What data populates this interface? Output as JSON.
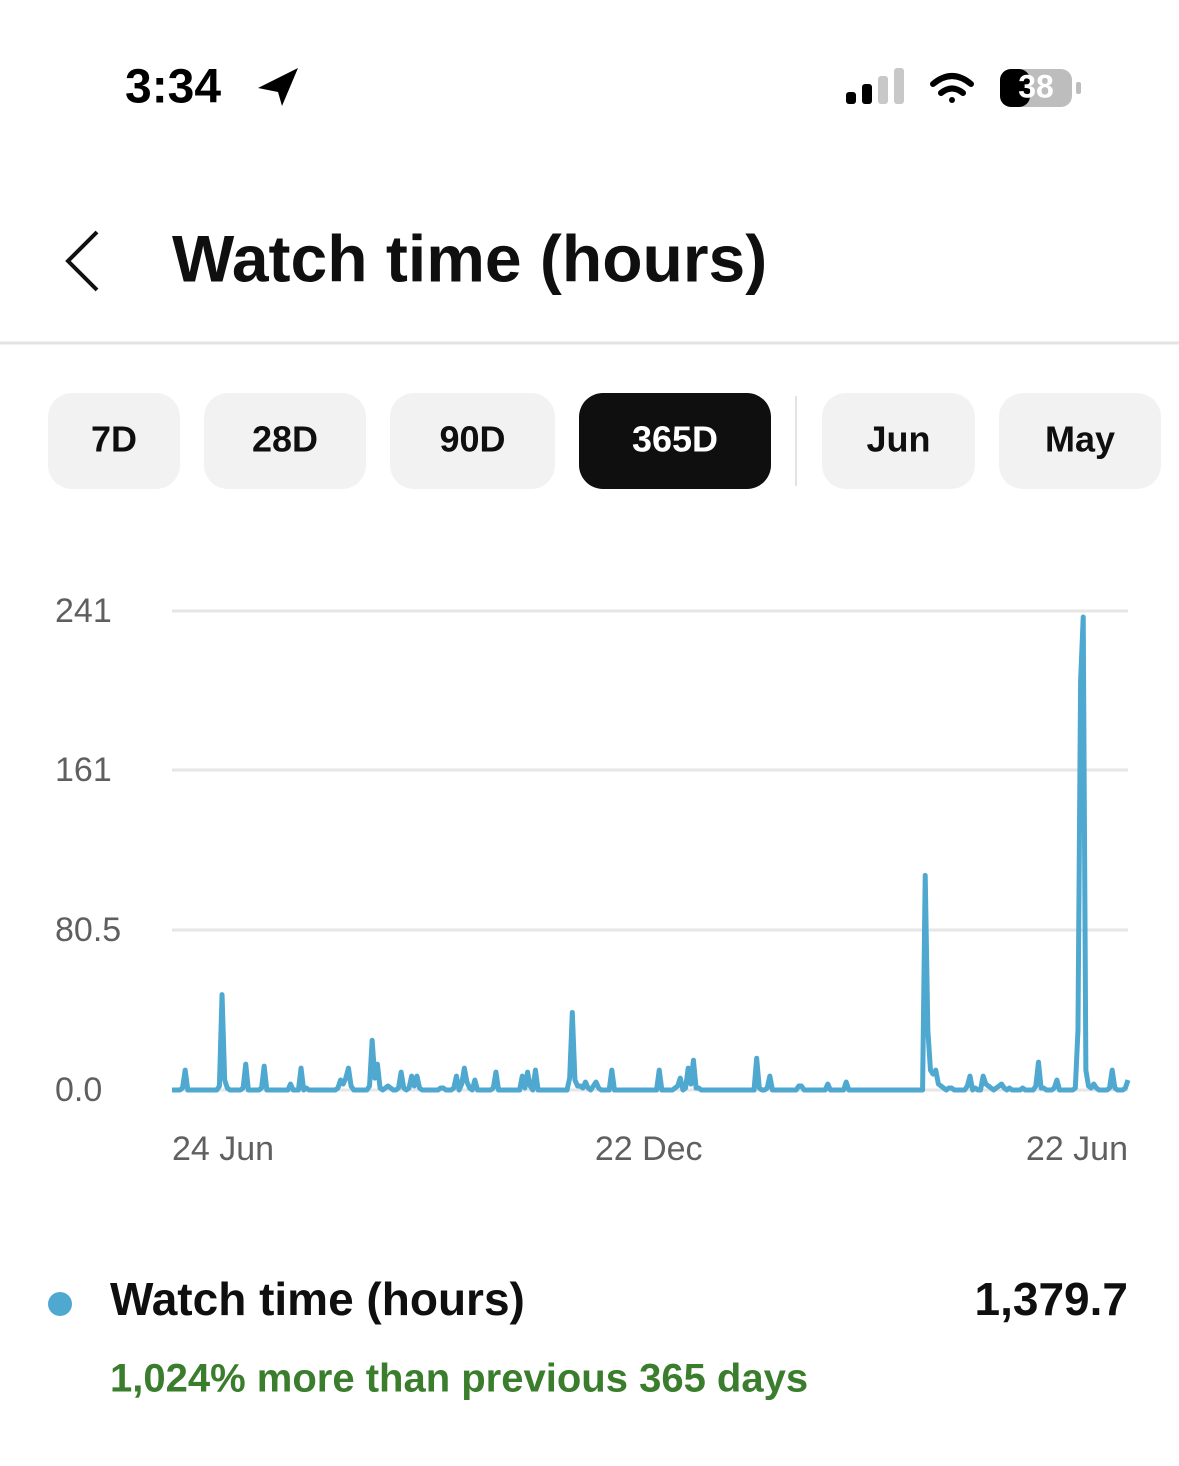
{
  "status_bar": {
    "time": "3:34",
    "battery": "38"
  },
  "header": {
    "title": "Watch time (hours)"
  },
  "tabs": [
    {
      "label": "7D",
      "selected": false
    },
    {
      "label": "28D",
      "selected": false
    },
    {
      "label": "90D",
      "selected": false
    },
    {
      "label": "365D",
      "selected": true
    },
    {
      "label": "Jun",
      "selected": false
    },
    {
      "label": "May",
      "selected": false
    }
  ],
  "chart_data": {
    "type": "line",
    "categories": [
      "24 Jun",
      null,
      null,
      null,
      null,
      null,
      null,
      null,
      null,
      null,
      null,
      null,
      null,
      null,
      null,
      null,
      null,
      null,
      null,
      null,
      null,
      null,
      null,
      null,
      null,
      null,
      null,
      null,
      null,
      null,
      null,
      null,
      null,
      null,
      null,
      null,
      null,
      null,
      null,
      null,
      null,
      null,
      null,
      null,
      null,
      null,
      null,
      null,
      null,
      null,
      null,
      null,
      null,
      null,
      null,
      null,
      null,
      null,
      null,
      null,
      null,
      null,
      null,
      null,
      null,
      null,
      null,
      null,
      null,
      null,
      null,
      null,
      null,
      null,
      null,
      null,
      null,
      null,
      null,
      null,
      null,
      null,
      null,
      null,
      null,
      null,
      null,
      null,
      null,
      null,
      null,
      null,
      null,
      null,
      null,
      null,
      null,
      null,
      null,
      null,
      null,
      null,
      null,
      null,
      null,
      null,
      null,
      null,
      null,
      null,
      null,
      null,
      null,
      null,
      null,
      null,
      null,
      null,
      null,
      null,
      null,
      null,
      null,
      null,
      null,
      null,
      null,
      null,
      null,
      null,
      null,
      null,
      null,
      null,
      null,
      null,
      null,
      null,
      null,
      null,
      null,
      null,
      null,
      null,
      null,
      null,
      null,
      null,
      null,
      null,
      null,
      null,
      null,
      null,
      null,
      null,
      null,
      null,
      null,
      null,
      null,
      null,
      null,
      null,
      null,
      null,
      null,
      null,
      null,
      null,
      null,
      null,
      null,
      null,
      null,
      null,
      null,
      null,
      null,
      null,
      null,
      "22 Dec",
      null,
      null,
      null,
      null,
      null,
      null,
      null,
      null,
      null,
      null,
      null,
      null,
      null,
      null,
      null,
      null,
      null,
      null,
      null,
      null,
      null,
      null,
      null,
      null,
      null,
      null,
      null,
      null,
      null,
      null,
      null,
      null,
      null,
      null,
      null,
      null,
      null,
      null,
      null,
      null,
      null,
      null,
      null,
      null,
      null,
      null,
      null,
      null,
      null,
      null,
      null,
      null,
      null,
      null,
      null,
      null,
      null,
      null,
      null,
      null,
      null,
      null,
      null,
      null,
      null,
      null,
      null,
      null,
      null,
      null,
      null,
      null,
      null,
      null,
      null,
      null,
      null,
      null,
      null,
      null,
      null,
      null,
      null,
      null,
      null,
      null,
      null,
      null,
      null,
      null,
      null,
      null,
      null,
      null,
      null,
      null,
      null,
      null,
      null,
      null,
      null,
      null,
      null,
      null,
      null,
      null,
      null,
      null,
      null,
      null,
      null,
      null,
      null,
      null,
      null,
      null,
      null,
      null,
      null,
      null,
      null,
      null,
      null,
      null,
      null,
      null,
      null,
      null,
      null,
      null,
      null,
      null,
      null,
      null,
      null,
      null,
      null,
      null,
      null,
      null,
      null,
      null,
      null,
      null,
      null,
      null,
      null,
      null,
      null,
      null,
      null,
      null,
      null,
      null,
      null,
      null,
      null,
      null,
      null,
      null,
      null,
      null,
      null,
      null,
      null,
      null,
      null,
      null,
      null,
      null,
      null,
      null,
      null,
      null,
      null,
      null,
      null,
      null,
      null,
      null,
      null,
      "22 Jun"
    ],
    "series": [
      {
        "name": "Watch time (hours)",
        "color": "#4fa8d0",
        "values": [
          0,
          0,
          0,
          0,
          1,
          10,
          0,
          0,
          0,
          0,
          0,
          0,
          0,
          0,
          0,
          0,
          0,
          0,
          2,
          48,
          5,
          1,
          0,
          0,
          0,
          0,
          0,
          1,
          13,
          0,
          0,
          0,
          0,
          0,
          1,
          12,
          0,
          0,
          0,
          0,
          0,
          0,
          0,
          0,
          0,
          3,
          0,
          0,
          0,
          11,
          0,
          1,
          0,
          0,
          0,
          0,
          0,
          0,
          0,
          0,
          0,
          0,
          0,
          1,
          5,
          3,
          6,
          11,
          2,
          0,
          0,
          0,
          0,
          0,
          0,
          2,
          25,
          6,
          13,
          1,
          0,
          1,
          2,
          1,
          0,
          0,
          1,
          9,
          1,
          0,
          1,
          7,
          2,
          7,
          1,
          0,
          0,
          0,
          0,
          0,
          0,
          0,
          1,
          1,
          0,
          0,
          0,
          1,
          7,
          0,
          3,
          11,
          4,
          1,
          0,
          5,
          0,
          0,
          0,
          0,
          0,
          0,
          1,
          9,
          0,
          0,
          0,
          0,
          0,
          0,
          0,
          0,
          0,
          7,
          1,
          9,
          2,
          0,
          10,
          0,
          0,
          0,
          0,
          0,
          0,
          0,
          0,
          0,
          0,
          0,
          0,
          6,
          39,
          5,
          2,
          2,
          1,
          4,
          1,
          0,
          2,
          4,
          1,
          0,
          0,
          0,
          0,
          10,
          0,
          0,
          0,
          0,
          0,
          0,
          0,
          0,
          0,
          0,
          0,
          0,
          0,
          0,
          0,
          0,
          0,
          10,
          0,
          0,
          0,
          0,
          0,
          1,
          2,
          6,
          0,
          1,
          11,
          3,
          15,
          1,
          1,
          0,
          0,
          0,
          0,
          0,
          0,
          0,
          0,
          0,
          0,
          0,
          0,
          0,
          0,
          0,
          0,
          0,
          0,
          0,
          0,
          0,
          16,
          1,
          0,
          0,
          1,
          7,
          0,
          0,
          0,
          0,
          0,
          0,
          0,
          0,
          0,
          0,
          2,
          2,
          0,
          0,
          0,
          0,
          0,
          0,
          0,
          0,
          0,
          3,
          0,
          0,
          0,
          0,
          0,
          0,
          4,
          0,
          0,
          0,
          0,
          0,
          0,
          0,
          0,
          0,
          0,
          0,
          0,
          0,
          0,
          0,
          0,
          0,
          0,
          0,
          0,
          0,
          0,
          0,
          0,
          0,
          0,
          0,
          0,
          0,
          108,
          30,
          10,
          8,
          10,
          3,
          2,
          1,
          0,
          1,
          1,
          0,
          0,
          0,
          0,
          0,
          2,
          7,
          0,
          1,
          0,
          0,
          7,
          3,
          2,
          1,
          0,
          1,
          2,
          3,
          1,
          0,
          1,
          0,
          0,
          0,
          0,
          1,
          0,
          0,
          0,
          0,
          2,
          14,
          1,
          1,
          0,
          0,
          0,
          1,
          5,
          0,
          0,
          0,
          0,
          0,
          0,
          1,
          30,
          206,
          238,
          10,
          2,
          1,
          3,
          1,
          0,
          0,
          0,
          0,
          1,
          10,
          1,
          0,
          0,
          0,
          1,
          5
        ]
      }
    ],
    "ylim": [
      0,
      241
    ],
    "yticks": [
      {
        "value": 0,
        "label": "0.0"
      },
      80.5,
      161,
      241
    ],
    "grid": true
  },
  "summary": {
    "total": "1,379.7",
    "comparison": "1,024% more than previous 365 days"
  }
}
